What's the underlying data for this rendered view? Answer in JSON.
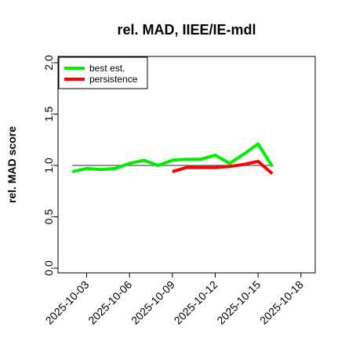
{
  "chart_data": {
    "type": "line",
    "title": "rel. MAD, IIEE/IE-mdl",
    "xlabel": "",
    "ylabel": "rel. MAD score",
    "ylim": [
      0.0,
      2.0
    ],
    "y_ticks": [
      "0.0",
      "0.5",
      "1.0",
      "1.5",
      "2.0"
    ],
    "x_ticks": [
      "2025-10-03",
      "2025-10-06",
      "2025-10-09",
      "2025-10-12",
      "2025-10-15",
      "2025-10-18"
    ],
    "xlim": [
      "2025-10-01",
      "2025-10-19"
    ],
    "reference_line": {
      "y": 1.0,
      "from": "2025-10-02",
      "to": "2025-10-16",
      "color": "#555555"
    },
    "legend_position": "top-left",
    "series": [
      {
        "name": "best est.",
        "color": "#00ee00",
        "x": [
          "2025-10-02",
          "2025-10-03",
          "2025-10-04",
          "2025-10-05",
          "2025-10-06",
          "2025-10-07",
          "2025-10-08",
          "2025-10-09",
          "2025-10-10",
          "2025-10-11",
          "2025-10-12",
          "2025-10-13",
          "2025-10-14",
          "2025-10-15",
          "2025-10-16"
        ],
        "values": [
          0.94,
          0.97,
          0.96,
          0.97,
          1.02,
          1.05,
          1.0,
          1.05,
          1.06,
          1.06,
          1.1,
          1.02,
          1.11,
          1.21,
          0.99
        ]
      },
      {
        "name": "persistence",
        "color": "#ff0000",
        "x": [
          "2025-10-09",
          "2025-10-10",
          "2025-10-11",
          "2025-10-12",
          "2025-10-13",
          "2025-10-14",
          "2025-10-15",
          "2025-10-16"
        ],
        "values": [
          0.94,
          0.98,
          0.98,
          0.98,
          0.99,
          1.01,
          1.04,
          0.92
        ]
      }
    ]
  }
}
